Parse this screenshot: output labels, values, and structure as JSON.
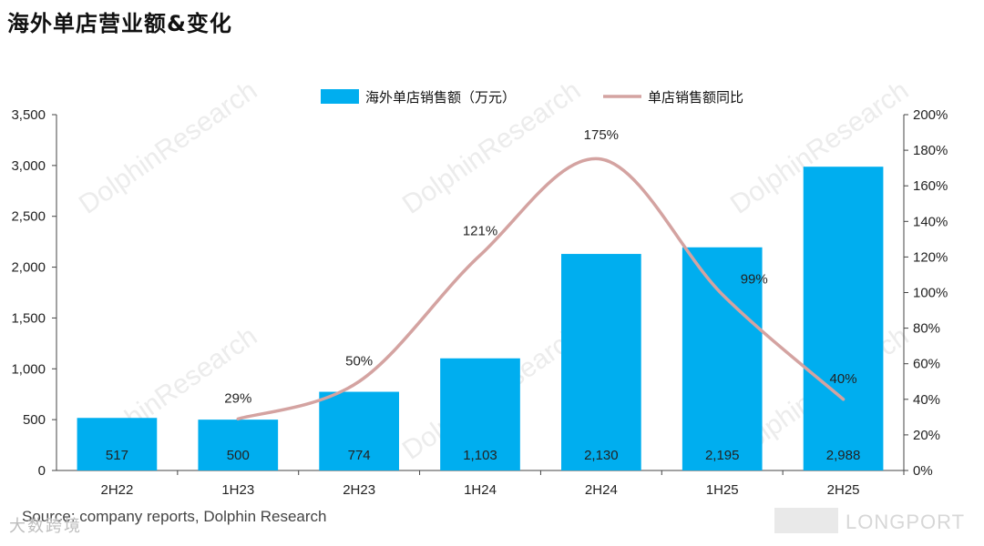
{
  "title": "海外单店营业额&变化",
  "source": "Source: company reports, Dolphin Research",
  "watermarks": {
    "center": "DolphinResearch",
    "bottom_left": "大数跨境",
    "bottom_right": "LONGPORT"
  },
  "colors": {
    "bar": "#00AEEF",
    "line": "#D4A3A1",
    "axis": "#444444"
  },
  "chart_data": {
    "type": "bar",
    "categories": [
      "2H22",
      "1H23",
      "2H23",
      "1H24",
      "2H24",
      "1H25",
      "2H25"
    ],
    "series": [
      {
        "name": "海外单店销售额（万元）",
        "type": "bar",
        "axis": "left",
        "values": [
          517,
          500,
          774,
          1103,
          2130,
          2195,
          2988
        ],
        "labels": [
          "517",
          "500",
          "774",
          "1,103",
          "2,130",
          "2,195",
          "2,988"
        ]
      },
      {
        "name": "单店销售额同比",
        "type": "line",
        "axis": "right",
        "values": [
          null,
          29,
          50,
          121,
          175,
          99,
          40
        ],
        "labels": [
          null,
          "29%",
          "50%",
          "121%",
          "175%",
          "99%",
          "40%"
        ]
      }
    ],
    "y_left": {
      "range": [
        0,
        3500
      ],
      "ticks": [
        "0",
        "500",
        "1,000",
        "1,500",
        "2,000",
        "2,500",
        "3,000",
        "3,500"
      ]
    },
    "y_right": {
      "range": [
        0,
        200
      ],
      "ticks": [
        "0%",
        "20%",
        "40%",
        "60%",
        "80%",
        "100%",
        "120%",
        "140%",
        "160%",
        "180%",
        "200%"
      ]
    },
    "legend_position": "top",
    "grid": false
  }
}
